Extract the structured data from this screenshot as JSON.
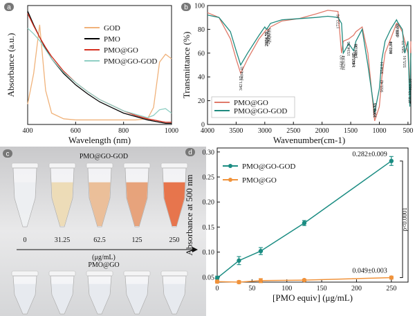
{
  "chart_data": [
    {
      "type": "line",
      "label": "a",
      "xlabel": "Wavelength (nm)",
      "ylabel": "Absorbance (a.u.)",
      "x": [
        400,
        425,
        450,
        475,
        500,
        550,
        600,
        650,
        700,
        750,
        800,
        850,
        900,
        925,
        950,
        975,
        1000
      ],
      "xlim": [
        400,
        1000
      ],
      "xticks": [
        400,
        600,
        800,
        1000
      ],
      "ylim": [
        0,
        1.05
      ],
      "legend": "upper center",
      "series": [
        {
          "name": "GOD",
          "color": "#f0b27a",
          "values": [
            0.18,
            0.45,
            0.88,
            0.3,
            0.1,
            0.05,
            0.04,
            0.04,
            0.04,
            0.04,
            0.04,
            0.04,
            0.05,
            0.15,
            0.55,
            0.62,
            0.58
          ]
        },
        {
          "name": "PMO",
          "color": "#000000",
          "values": [
            1.0,
            0.88,
            0.77,
            0.67,
            0.58,
            0.45,
            0.35,
            0.27,
            0.2,
            0.15,
            0.1,
            0.07,
            0.04,
            0.03,
            0.02,
            0.01,
            0.01
          ]
        },
        {
          "name": "PMO@GO",
          "color": "#d62f1f",
          "values": [
            0.98,
            0.87,
            0.77,
            0.68,
            0.6,
            0.47,
            0.37,
            0.29,
            0.22,
            0.17,
            0.12,
            0.08,
            0.05,
            0.04,
            0.03,
            0.02,
            0.02
          ]
        },
        {
          "name": "PMO@GO-GOD",
          "color": "#8fcfc4",
          "values": [
            0.85,
            0.8,
            0.74,
            0.66,
            0.58,
            0.46,
            0.37,
            0.29,
            0.22,
            0.17,
            0.12,
            0.09,
            0.06,
            0.08,
            0.13,
            0.14,
            0.1
          ]
        }
      ]
    },
    {
      "type": "line",
      "label": "b",
      "xlabel": "Wavenumber(cm-1)",
      "ylabel": "Transmittance (%)",
      "x": [
        4000,
        3800,
        3600,
        3500,
        3421,
        3300,
        3100,
        3000,
        2970,
        2940,
        2900,
        2700,
        2400,
        2100,
        1900,
        1722,
        1660,
        1629,
        1534,
        1450,
        1409,
        1300,
        1200,
        1082,
        1000,
        955,
        900,
        802,
        700,
        680,
        600,
        555,
        500,
        468,
        450
      ],
      "xlim": [
        4000,
        450
      ],
      "xticks": [
        4000,
        3500,
        3000,
        2500,
        2000,
        1500,
        1000,
        500
      ],
      "ylim": [
        0,
        100
      ],
      "yticks": [
        0,
        20,
        40,
        60,
        80,
        100
      ],
      "legend": "lower left",
      "series": [
        {
          "name": "PMO@GO",
          "color": "#e07a6a",
          "values": [
            94,
            90,
            72,
            55,
            43,
            55,
            72,
            78,
            80,
            79,
            82,
            87,
            89,
            93,
            96,
            95,
            60,
            70,
            72,
            75,
            78,
            82,
            60,
            3,
            15,
            40,
            60,
            72,
            85,
            85,
            78,
            70,
            60,
            30,
            70
          ]
        },
        {
          "name": "PMO@GO-GOD",
          "color": "#1f8a7e",
          "values": [
            92,
            90,
            78,
            62,
            50,
            60,
            75,
            82,
            80,
            82,
            85,
            88,
            89,
            90,
            91,
            90,
            85,
            60,
            68,
            62,
            70,
            80,
            50,
            10,
            30,
            55,
            70,
            80,
            88,
            86,
            80,
            60,
            70,
            15,
            60
          ]
        }
      ],
      "peaks": [
        {
          "value": 3421.37,
          "series": 0
        },
        {
          "value": 3404.41,
          "series": 1
        },
        {
          "value": 2966.75,
          "series": 1
        },
        {
          "value": 2974.59,
          "series": 1
        },
        {
          "value": 2920.15,
          "series": 1
        },
        {
          "value": 2939.86,
          "series": 1
        },
        {
          "value": 1722.16,
          "series": 0
        },
        {
          "value": 1660.92,
          "series": 0
        },
        {
          "value": 1629.04,
          "series": 1
        },
        {
          "value": 1534.85,
          "series": 0
        },
        {
          "value": 1451.67,
          "series": 1
        },
        {
          "value": 1407.58,
          "series": 1
        },
        {
          "value": {
            "value": 1409.0,
            "label": "1409.00"
          },
          "series": 1
        },
        {
          "value": {
            "value": 1445.4,
            "label": "1445.40"
          },
          "series": 1
        },
        {
          "value": 1082.31,
          "series": 0
        },
        {
          "value": 1079.33,
          "series": 0
        },
        {
          "value": 955.42,
          "series": 0
        },
        {
          "value": 954.01,
          "series": 1
        },
        {
          "value": {
            "value": 801.7,
            "label": "801.70"
          },
          "series": 0
        },
        {
          "value": 802.84,
          "series": 0
        },
        {
          "value": 688.59,
          "series": 1
        },
        {
          "value": 680.41,
          "series": 1
        },
        {
          "value": 583.77,
          "series": 1
        },
        {
          "value": 555.91,
          "series": 1
        },
        {
          "value": {
            "value": 468.1,
            "label": "468.10"
          },
          "series": 1
        },
        {
          "value": {
            "value": 463.1,
            "label": "463.10"
          },
          "series": 0
        }
      ]
    },
    {
      "type": "line",
      "label": "d",
      "xlabel": "[PMO equiv] (μg/mL)",
      "ylabel": "Absorbance at 500 nm",
      "x": [
        0,
        31.25,
        62.5,
        125,
        250
      ],
      "xlim": [
        0,
        274
      ],
      "xticks": [
        0,
        50,
        100,
        150,
        200,
        250
      ],
      "ylim": [
        0.04,
        0.308
      ],
      "yticks": [
        0.05,
        {
          "value": 0.1,
          "label": "0.10"
        },
        0.15,
        {
          "value": 0.2,
          "label": "0.20"
        },
        0.25,
        {
          "value": 0.3,
          "label": "0.30"
        }
      ],
      "legend": "upper left",
      "markers": true,
      "significance": "p<0.0001",
      "series": [
        {
          "name": "PMO@GO-GOD",
          "color": "#1a8c82",
          "values": [
            0.048,
            0.083,
            0.102,
            0.158,
            0.282
          ],
          "errors": [
            0.004,
            0.008,
            0.007,
            0.005,
            0.009
          ],
          "end_label": "0.282±0.009"
        },
        {
          "name": "PMO@GO",
          "color": "#f0923a",
          "values": [
            0.041,
            0.04,
            0.043,
            0.044,
            0.049
          ],
          "errors": [
            0.003,
            0.003,
            0.004,
            0.002,
            0.003
          ],
          "end_label": "0.049±0.003"
        }
      ]
    }
  ],
  "photo": {
    "label": "c",
    "top_title": "PMO@GO-GOD",
    "concentrations": [
      "0",
      "31.25",
      "62.5",
      "125",
      "250"
    ],
    "unit": "(μg/mL)",
    "bottom_title": "PMO@GO"
  }
}
